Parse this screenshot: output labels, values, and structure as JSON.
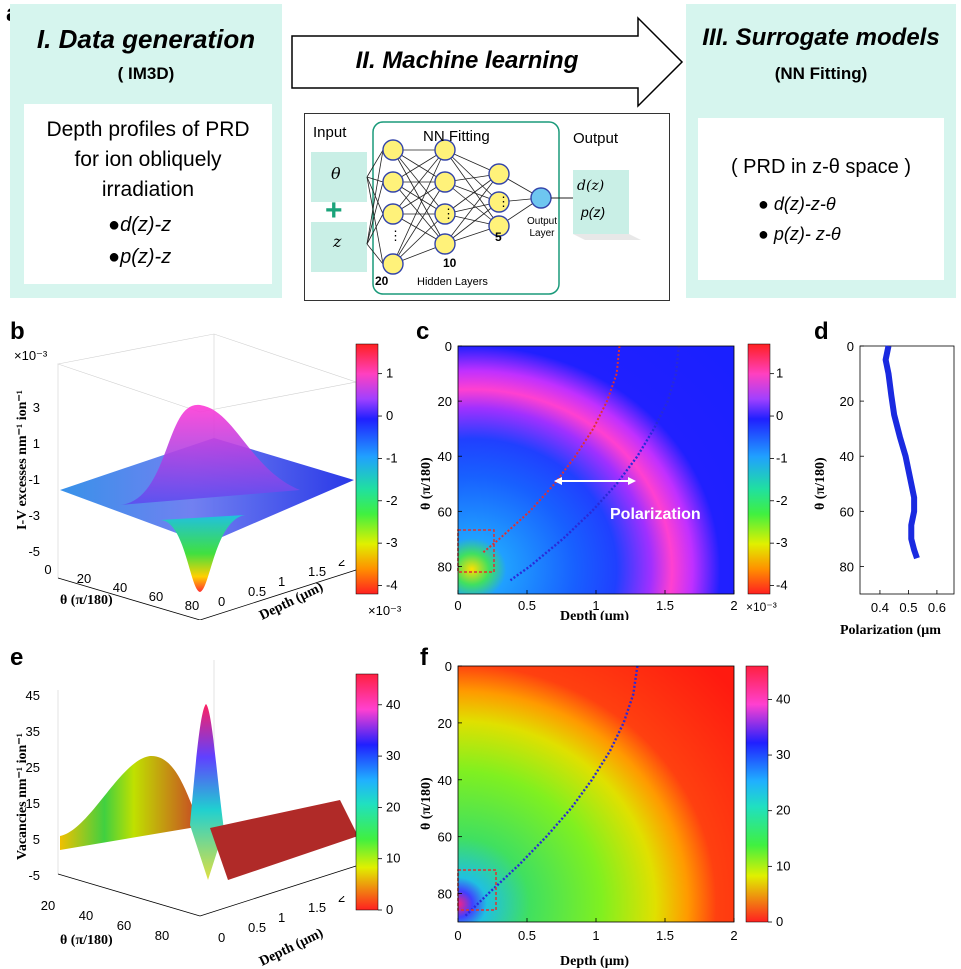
{
  "panel_letters": {
    "a": "a",
    "b": "b",
    "c": "c",
    "d": "d",
    "e": "e",
    "f": "f"
  },
  "schematic": {
    "gen_title": "I. Data generation",
    "gen_sub": "( IM3D)",
    "gen_text": [
      "Depth profiles of PRD",
      "for ion obliquely",
      "irradiation"
    ],
    "gen_bullets": [
      "d(z)-z",
      "p(z)-z"
    ],
    "ml_title": "II. Machine learning",
    "nn": {
      "input": "Input",
      "fitting": "NN Fitting",
      "output": "Output",
      "theta": "θ",
      "plus": "+",
      "z": "z",
      "n1": "20",
      "n2": "10",
      "n3": "5",
      "output_layer_1": "Output",
      "output_layer_2": "Layer",
      "hidden": "Hidden Layers",
      "out_d": "d(z)",
      "out_p": "p(z)",
      "dots": "⋮"
    },
    "sur_title": "III. Surrogate models",
    "sur_sub": "(NN Fitting)",
    "sur_text": "( PRD in z-θ space )",
    "sur_bullets": [
      "d(z)-z-θ",
      "p(z)- z-θ"
    ]
  },
  "colors": {
    "box": "#d6f5ee",
    "plus": "#1aa37a",
    "node": "#fff27a",
    "node_out": "#6ec6f0",
    "red_dash": "#e03030",
    "blue_dots": "#2a2ad8"
  },
  "chart_data": [
    {
      "id": "b",
      "type": "surface3d",
      "zlabel": "I-V excesses nm⁻¹ ion⁻¹",
      "xlabel": "θ (π/180)",
      "ylabel": "Depth (μm)",
      "exponent": "×10⁻³",
      "z_ticks": [
        "-5",
        "-3",
        "-1",
        "1",
        "3"
      ],
      "x_ticks": [
        "0",
        "20",
        "40",
        "60",
        "80"
      ],
      "y_ticks": [
        "0",
        "0.5",
        "1",
        "1.5",
        "2"
      ],
      "colorbar": {
        "ticks": [
          "1",
          "0",
          "-1",
          "-2",
          "-3",
          "-4"
        ],
        "exponent": "×10⁻³",
        "range": [
          -4.2,
          1.7
        ]
      }
    },
    {
      "id": "c",
      "type": "heatmap",
      "xlabel": "Depth (μm)",
      "ylabel": "θ (π/180)",
      "x_ticks": [
        "0",
        "0.5",
        "1",
        "1.5",
        "2"
      ],
      "y_ticks": [
        "0",
        "20",
        "40",
        "60",
        "80"
      ],
      "xlim": [
        0,
        2
      ],
      "ylim": [
        0,
        90
      ],
      "annotation": "Polarization",
      "colorbar": {
        "ticks": [
          "1",
          "0",
          "-1",
          "-2",
          "-3",
          "-4"
        ],
        "exponent": "×10⁻³",
        "range": [
          -4.2,
          1.7
        ]
      },
      "red_curve": {
        "theta": [
          0,
          10,
          20,
          30,
          40,
          50,
          60,
          70,
          75
        ],
        "depth": [
          1.17,
          1.15,
          1.08,
          0.98,
          0.85,
          0.7,
          0.52,
          0.3,
          0.18
        ]
      },
      "blue_curve": {
        "theta": [
          0,
          10,
          20,
          30,
          40,
          50,
          60,
          70,
          80,
          85
        ],
        "depth": [
          1.6,
          1.58,
          1.52,
          1.42,
          1.3,
          1.15,
          0.97,
          0.76,
          0.52,
          0.38
        ]
      }
    },
    {
      "id": "d",
      "type": "line",
      "xlabel": "Polarization (μm",
      "ylabel": "θ (π/180)",
      "x_ticks": [
        "0.4",
        "0.5",
        "0.6"
      ],
      "y_ticks": [
        "0",
        "20",
        "40",
        "60",
        "80"
      ],
      "xlim": [
        0.33,
        0.66
      ],
      "ylim": [
        0,
        90
      ],
      "x": [
        0.43,
        0.42,
        0.43,
        0.44,
        0.45,
        0.47,
        0.49,
        0.5,
        0.51,
        0.52,
        0.52,
        0.51,
        0.51,
        0.52,
        0.53
      ],
      "y": [
        0,
        5,
        10,
        18,
        25,
        33,
        40,
        45,
        50,
        55,
        60,
        65,
        70,
        74,
        77
      ]
    },
    {
      "id": "e",
      "type": "surface3d",
      "zlabel": "Vacancies nm⁻¹ ion⁻¹",
      "xlabel": "θ (π/180)",
      "ylabel": "Depth (μm)",
      "z_ticks": [
        "-5",
        "5",
        "15",
        "25",
        "35",
        "45"
      ],
      "x_ticks": [
        "20",
        "40",
        "60",
        "80"
      ],
      "y_ticks": [
        "0",
        "0.5",
        "1",
        "1.5",
        "2"
      ],
      "colorbar": {
        "ticks": [
          "40",
          "30",
          "20",
          "10",
          "0"
        ],
        "range": [
          0,
          46
        ]
      }
    },
    {
      "id": "f",
      "type": "heatmap",
      "xlabel": "Depth (μm)",
      "ylabel": "θ (π/180)",
      "x_ticks": [
        "0",
        "0.5",
        "1",
        "1.5",
        "2"
      ],
      "y_ticks": [
        "0",
        "20",
        "40",
        "60",
        "80"
      ],
      "xlim": [
        0,
        2
      ],
      "ylim": [
        0,
        90
      ],
      "colorbar": {
        "ticks": [
          "40",
          "30",
          "20",
          "10",
          "0"
        ],
        "range": [
          0,
          46
        ]
      },
      "blue_curve": {
        "theta": [
          0,
          10,
          20,
          30,
          40,
          50,
          60,
          70,
          80,
          88
        ],
        "depth": [
          1.3,
          1.27,
          1.2,
          1.1,
          0.97,
          0.82,
          0.64,
          0.44,
          0.22,
          0.05
        ]
      }
    }
  ]
}
